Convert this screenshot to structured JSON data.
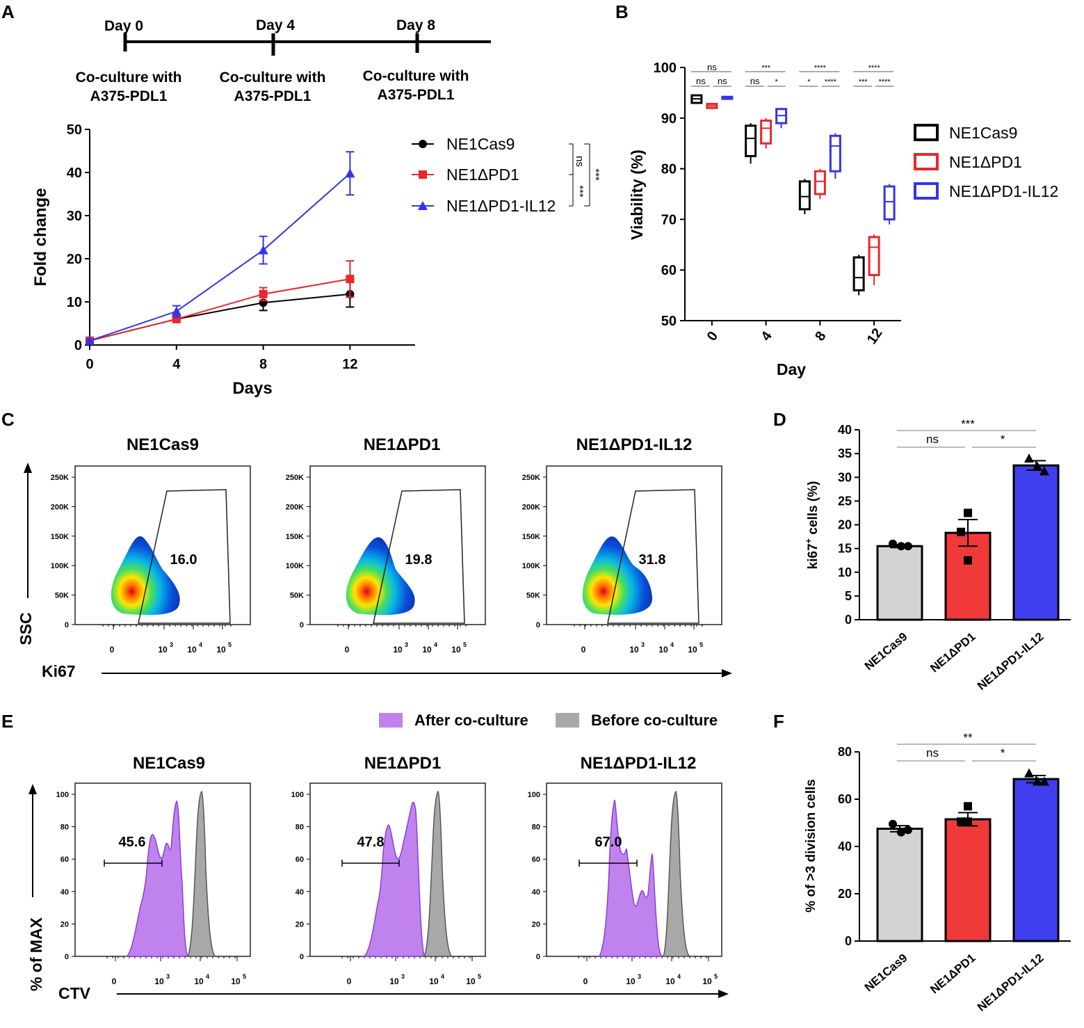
{
  "panel_letters": [
    "A",
    "B",
    "C",
    "D",
    "E",
    "F"
  ],
  "timeline": {
    "days": [
      "Day 0",
      "Day 4",
      "Day 8"
    ],
    "captions": [
      [
        "Co-culture with",
        "A375-PDL1"
      ],
      [
        "Co-culture with",
        "A375-PDL1"
      ],
      [
        "Co-culture with",
        "A375-PDL1"
      ]
    ]
  },
  "chart_data": [
    {
      "panel": "A",
      "type": "line",
      "xlabel": "Days",
      "ylabel": "Fold change",
      "x": [
        0,
        4,
        8,
        12
      ],
      "xlim": [
        0,
        15
      ],
      "ylim": [
        0,
        50
      ],
      "xticks": [
        "0",
        "4",
        "8",
        "12"
      ],
      "yticks": [
        "0",
        "10",
        "20",
        "30",
        "40",
        "50"
      ],
      "series": [
        {
          "name": "NE1Cas9",
          "color": "#000000",
          "marker": "circle",
          "values": [
            1,
            6,
            9.8,
            11.8
          ],
          "err": [
            0.3,
            0.6,
            1.8,
            3
          ]
        },
        {
          "name": "NE1ΔPD1",
          "color": "#e8282b",
          "marker": "square",
          "values": [
            1,
            6,
            11.8,
            15.3
          ],
          "err": [
            0.3,
            0.6,
            1.5,
            4.2
          ]
        },
        {
          "name": "NE1ΔPD1-IL12",
          "color": "#3333ee",
          "marker": "triangle",
          "values": [
            1,
            7.8,
            22,
            39.8
          ],
          "err": [
            0.3,
            1.3,
            3.2,
            5
          ]
        }
      ],
      "significance": [
        {
          "compare": "NE1Cas9 vs NE1ΔPD1",
          "label": "ns"
        },
        {
          "compare": "NE1ΔPD1 vs NE1ΔPD1-IL12",
          "label": "***"
        },
        {
          "compare": "NE1Cas9 vs NE1ΔPD1-IL12",
          "label": "***"
        }
      ]
    },
    {
      "panel": "B",
      "type": "box",
      "xlabel": "Day",
      "ylabel": "Viability  (%)",
      "categories": [
        "0",
        "4",
        "8",
        "12"
      ],
      "ylim": [
        50,
        100
      ],
      "yticks": [
        "50",
        "60",
        "70",
        "80",
        "90",
        "100"
      ],
      "series": [
        {
          "name": "NE1Cas9",
          "color": "#000000",
          "boxes": [
            [
              93,
              93,
              93.8,
              94.5,
              94.5
            ],
            [
              81,
              82.5,
              86,
              88.5,
              89
            ],
            [
              71,
              72,
              74.5,
              77.5,
              78
            ],
            [
              55,
              56,
              58.5,
              62.5,
              63
            ]
          ]
        },
        {
          "name": "NE1ΔPD1",
          "color": "#e8282b",
          "boxes": [
            [
              91.8,
              92,
              92.4,
              92.8,
              93
            ],
            [
              84,
              85,
              88,
              89.5,
              90
            ],
            [
              74,
              75,
              77.5,
              79.5,
              80
            ],
            [
              57,
              59,
              64.5,
              66.5,
              67
            ]
          ]
        },
        {
          "name": "NE1ΔPD1-IL12",
          "color": "#3333ee",
          "boxes": [
            [
              93.7,
              93.8,
              94,
              94.2,
              94.3
            ],
            [
              88,
              89,
              90.5,
              91.8,
              92
            ],
            [
              78,
              79.5,
              84.5,
              86.5,
              87
            ],
            [
              69,
              70,
              73.5,
              76.5,
              77
            ]
          ]
        }
      ],
      "significance": {
        "0": [
          "ns",
          "ns",
          "ns"
        ],
        "4": [
          "***",
          "ns",
          "*"
        ],
        "8": [
          "****",
          "*",
          "****"
        ],
        "12": [
          "****",
          "***",
          "****"
        ]
      }
    },
    {
      "panel": "C",
      "type": "flow-density",
      "xlabel": "Ki67",
      "ylabel": "SSC",
      "yticks": [
        "250K",
        "200K",
        "150K",
        "100K",
        "50K",
        "0"
      ],
      "xticks": [
        "0",
        "10",
        "10",
        "10"
      ],
      "xtick_exponents": [
        "",
        "3",
        "4",
        "5"
      ],
      "samples": [
        {
          "name": "NE1Cas9",
          "gate_percent": "16.0"
        },
        {
          "name": "NE1ΔPD1",
          "gate_percent": "19.8"
        },
        {
          "name": "NE1ΔPD1-IL12",
          "gate_percent": "31.8"
        }
      ]
    },
    {
      "panel": "D",
      "type": "bar",
      "ylabel_main": "ki67",
      "ylabel_sup": "+",
      "ylabel_rest": " cells (%)",
      "categories": [
        "NE1Cas9",
        "NE1ΔPD1",
        "NE1ΔPD1-IL12"
      ],
      "colors": [
        "#d3d3d3",
        "#f03a3a",
        "#3f3ff0"
      ],
      "values": [
        15.5,
        18.3,
        32.5
      ],
      "sem": [
        0.3,
        2.8,
        1
      ],
      "points": [
        [
          16,
          15.5,
          15.5
        ],
        [
          22.5,
          18.5,
          12.5
        ],
        [
          34,
          32.3,
          31.3
        ]
      ],
      "ylim": [
        0,
        40
      ],
      "yticks": [
        "0",
        "5",
        "10",
        "15",
        "20",
        "25",
        "30",
        "35",
        "40"
      ],
      "significance": [
        {
          "compare": "NE1Cas9 vs NE1ΔPD1",
          "label": "ns"
        },
        {
          "compare": "NE1ΔPD1 vs NE1ΔPD1-IL12",
          "label": "*"
        },
        {
          "compare": "NE1Cas9 vs NE1ΔPD1-IL12",
          "label": "***"
        }
      ]
    },
    {
      "panel": "E",
      "type": "histogram",
      "xlabel": "CTV",
      "ylabel": "% of MAX",
      "legend": [
        {
          "label": "After co-culture",
          "color": "#c083ee"
        },
        {
          "label": "Before co-culture",
          "color": "#a8a8a8"
        }
      ],
      "yticks": [
        "100",
        "80",
        "60",
        "40",
        "20",
        "0"
      ],
      "xticks": [
        "0",
        "10",
        "10",
        "10"
      ],
      "xtick_exponents": [
        "",
        "3",
        "4",
        "5"
      ],
      "samples": [
        {
          "name": "NE1Cas9",
          "gate_percent": "45.6"
        },
        {
          "name": "NE1ΔPD1",
          "gate_percent": "47.8"
        },
        {
          "name": "NE1ΔPD1-IL12",
          "gate_percent": "67.0"
        }
      ]
    },
    {
      "panel": "F",
      "type": "bar",
      "ylabel": "% of >3 division cells",
      "categories": [
        "NE1Cas9",
        "NE1ΔPD1",
        "NE1ΔPD1-IL12"
      ],
      "colors": [
        "#d3d3d3",
        "#f03a3a",
        "#3f3ff0"
      ],
      "values": [
        47.5,
        51.5,
        68.5
      ],
      "sem": [
        1.3,
        2.8,
        1.5
      ],
      "points": [
        [
          49.5,
          46,
          47
        ],
        [
          57,
          50.5,
          50.5
        ],
        [
          71,
          67.5,
          67.5
        ]
      ],
      "ylim": [
        0,
        80
      ],
      "yticks": [
        "0",
        "20",
        "40",
        "60",
        "80"
      ],
      "significance": [
        {
          "compare": "NE1Cas9 vs NE1ΔPD1",
          "label": "ns"
        },
        {
          "compare": "NE1ΔPD1 vs NE1ΔPD1-IL12",
          "label": "*"
        },
        {
          "compare": "NE1Cas9 vs NE1ΔPD1-IL12",
          "label": "**"
        }
      ]
    }
  ]
}
